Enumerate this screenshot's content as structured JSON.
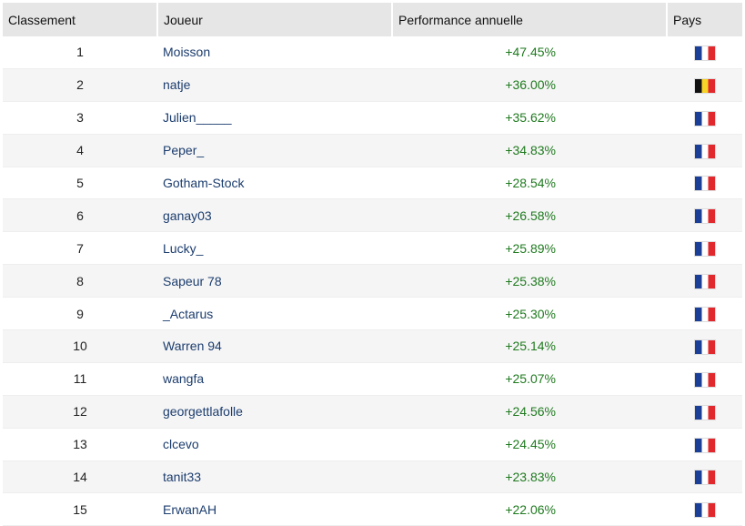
{
  "table": {
    "header": [
      "Classement",
      "Joueur",
      "Performance annuelle",
      "Pays"
    ],
    "rows": [
      [
        1,
        "Moisson",
        "+47.45%"
      ],
      [
        2,
        "natje",
        "+36.00%"
      ],
      [
        3,
        "Julien_____",
        "+35.62%"
      ],
      [
        4,
        "Peper_",
        "+34.83%"
      ],
      [
        5,
        "Gotham-Stock",
        "+28.54%"
      ],
      [
        6,
        "ganay03",
        "+26.58%"
      ],
      [
        7,
        "Lucky_",
        "+25.89%"
      ],
      [
        8,
        "Sapeur 78",
        "+25.38%"
      ],
      [
        9,
        "_Actarus",
        "+25.30%"
      ],
      [
        10,
        "Warren 94",
        "+25.14%"
      ],
      [
        11,
        "wangfa",
        "+25.07%"
      ],
      [
        12,
        "georgettlafolle",
        "+24.56%"
      ],
      [
        13,
        "clcevo",
        "+24.45%"
      ],
      [
        14,
        "tanit33",
        "+23.83%"
      ],
      [
        15,
        "ErwanAH",
        "+22.06%"
      ]
    ]
  }
}
